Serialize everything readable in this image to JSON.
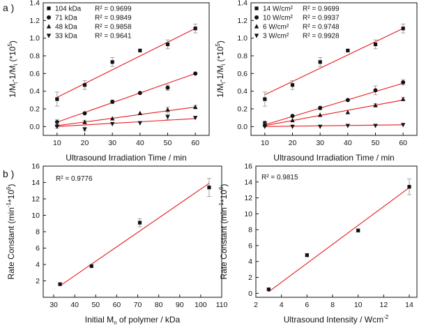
{
  "figure": {
    "panel_labels": [
      "a )",
      "b )"
    ]
  },
  "colors": {
    "fit": "#e8191f",
    "marker": "#111111",
    "error": "#9a9a9a",
    "axis": "#111111"
  },
  "chart_data": [
    {
      "id": "a-left",
      "type": "scatter",
      "title": "",
      "xlabel": "Ultrasound Irradiation Time / min",
      "ylabel": "1/M_t-1/M_i (*10^5)",
      "xlim": [
        5,
        65
      ],
      "ylim": [
        -0.1,
        1.4
      ],
      "xticks": [
        10,
        20,
        30,
        40,
        50,
        60
      ],
      "yticks": [
        0.0,
        0.2,
        0.4,
        0.6,
        0.8,
        1.0,
        1.2,
        1.4
      ],
      "ytick_labels": [
        "0.0",
        "0.2",
        "0.4",
        "0.6",
        "0.8",
        "1.0",
        "1.2",
        "1.4"
      ],
      "legend_position": "top-left",
      "series": [
        {
          "name": "104 kDa",
          "r2": "R² = 0.9699",
          "marker": "square",
          "x": [
            10,
            20,
            30,
            40,
            50,
            60
          ],
          "y": [
            0.31,
            0.47,
            0.73,
            0.86,
            0.93,
            1.11
          ],
          "err": [
            0.08,
            0.05,
            0.05,
            0.0,
            0.05,
            0.05
          ],
          "fit": [
            [
              10,
              0.33
            ],
            [
              60,
              1.11
            ]
          ]
        },
        {
          "name": "71 kDa",
          "r2": "R² = 0.9849",
          "marker": "circle",
          "x": [
            10,
            20,
            30,
            40,
            50,
            60
          ],
          "y": [
            0.05,
            0.15,
            0.28,
            0.38,
            0.44,
            0.6
          ],
          "err": [
            0.03,
            0.0,
            0.02,
            0.0,
            0.03,
            0.0
          ],
          "fit": [
            [
              10,
              0.05
            ],
            [
              60,
              0.6
            ]
          ]
        },
        {
          "name": "48 kDa",
          "r2": "R² = 0.9858",
          "marker": "triangle-up",
          "x": [
            10,
            20,
            30,
            40,
            50,
            60
          ],
          "y": [
            0.02,
            0.05,
            0.09,
            0.15,
            0.19,
            0.22
          ],
          "err": [
            0.02,
            0.02,
            0.0,
            0.0,
            0.03,
            0.02
          ],
          "fit": [
            [
              10,
              0.01
            ],
            [
              60,
              0.22
            ]
          ]
        },
        {
          "name": "33 kDa",
          "r2": "R² = 0.9641",
          "marker": "triangle-down",
          "x": [
            10,
            20,
            30,
            40,
            50,
            60
          ],
          "y": [
            0.0,
            -0.03,
            0.03,
            0.04,
            0.11,
            0.1
          ],
          "err": [
            0.02,
            0.02,
            0.0,
            0.0,
            0.03,
            0.0
          ],
          "fit": [
            [
              10,
              0.0
            ],
            [
              60,
              0.09
            ]
          ]
        }
      ]
    },
    {
      "id": "a-right",
      "type": "scatter",
      "title": "",
      "xlabel": "Ultrasound Irradiation Time / min",
      "ylabel": "1/M_t-1/M_i (*10^5)",
      "xlim": [
        5,
        65
      ],
      "ylim": [
        -0.1,
        1.4
      ],
      "xticks": [
        10,
        20,
        30,
        40,
        50,
        60
      ],
      "yticks": [
        0.0,
        0.2,
        0.4,
        0.6,
        0.8,
        1.0,
        1.2,
        1.4
      ],
      "ytick_labels": [
        "0.0",
        "0.2",
        "0.4",
        "0.6",
        "0.8",
        "1.0",
        "1.2",
        "1.4"
      ],
      "legend_position": "top-left",
      "series": [
        {
          "name": "14 W/cm²",
          "r2": "R² = 0.9699",
          "marker": "square",
          "x": [
            10,
            20,
            30,
            40,
            50,
            60
          ],
          "y": [
            0.31,
            0.47,
            0.73,
            0.86,
            0.93,
            1.11
          ],
          "err": [
            0.08,
            0.05,
            0.05,
            0.0,
            0.05,
            0.05
          ],
          "fit": [
            [
              10,
              0.36
            ],
            [
              60,
              1.11
            ]
          ]
        },
        {
          "name": "10 W/cm²",
          "r2": "R² = 0.9937",
          "marker": "circle",
          "x": [
            10,
            20,
            30,
            40,
            50,
            60
          ],
          "y": [
            0.04,
            0.12,
            0.21,
            0.3,
            0.41,
            0.5
          ],
          "err": [
            0.02,
            0.0,
            0.02,
            0.0,
            0.05,
            0.03
          ],
          "fit": [
            [
              10,
              0.02
            ],
            [
              60,
              0.49
            ]
          ]
        },
        {
          "name": "6 W/cm²",
          "r2": "R² = 0.9748",
          "marker": "triangle-up",
          "x": [
            10,
            20,
            30,
            40,
            50,
            60
          ],
          "y": [
            0.02,
            0.07,
            0.13,
            0.16,
            0.24,
            0.31
          ],
          "err": [
            0.02,
            0.0,
            0.0,
            0.0,
            0.02,
            0.02
          ],
          "fit": [
            [
              10,
              0.01
            ],
            [
              60,
              0.3
            ]
          ]
        },
        {
          "name": "3 W/cm²",
          "r2": "R² = 0.9928",
          "marker": "triangle-down",
          "x": [
            10,
            20,
            30,
            40,
            50,
            60
          ],
          "y": [
            0.0,
            0.0,
            0.0,
            0.01,
            0.01,
            0.02
          ],
          "err": [
            0.0,
            0.0,
            0.0,
            0.0,
            0.0,
            0.0
          ],
          "fit": [
            [
              10,
              0.0
            ],
            [
              60,
              0.02
            ]
          ]
        }
      ]
    },
    {
      "id": "b-left",
      "type": "scatter",
      "title": "",
      "xlabel": "Initial M_n of polymer / kDa",
      "ylabel": "Rate Constant (min^-1*10^6)",
      "xlim": [
        25,
        110
      ],
      "ylim": [
        0,
        16
      ],
      "xticks": [
        30,
        40,
        50,
        60,
        70,
        80,
        90,
        100,
        110
      ],
      "yticks": [
        2,
        4,
        6,
        8,
        10,
        12,
        14,
        16
      ],
      "ytick_labels": [
        "2",
        "4",
        "6",
        "8",
        "10",
        "12",
        "14",
        "16"
      ],
      "annotation": "R² = 0.9776",
      "series": [
        {
          "name": "rate",
          "marker": "square",
          "x": [
            33,
            48,
            71,
            104
          ],
          "y": [
            1.6,
            3.8,
            9.1,
            13.4
          ],
          "err": [
            0.0,
            0.0,
            0.5,
            1.1
          ],
          "fit": [
            [
              33,
              1.4
            ],
            [
              104,
              13.9
            ]
          ]
        }
      ]
    },
    {
      "id": "b-right",
      "type": "scatter",
      "title": "",
      "xlabel": "Ultrasound Intensity / Wcm^-2",
      "ylabel": "Rate Constant (min^-1*10^6)",
      "xlim": [
        2,
        14.6
      ],
      "ylim": [
        -0.5,
        16
      ],
      "xticks": [
        2,
        4,
        6,
        8,
        10,
        12,
        14
      ],
      "yticks": [
        0,
        2,
        4,
        6,
        8,
        10,
        12,
        14,
        16
      ],
      "ytick_labels": [
        "0",
        "2",
        "4",
        "6",
        "8",
        "10",
        "12",
        "14",
        "16"
      ],
      "annotation": "R² = 0.9815",
      "series": [
        {
          "name": "rate",
          "marker": "square",
          "x": [
            3,
            6,
            10,
            14
          ],
          "y": [
            0.5,
            4.8,
            7.9,
            13.4
          ],
          "err": [
            0.0,
            0.2,
            0.2,
            1.0
          ],
          "fit": [
            [
              3,
              0.2
            ],
            [
              14,
              13.3
            ]
          ]
        }
      ]
    }
  ]
}
